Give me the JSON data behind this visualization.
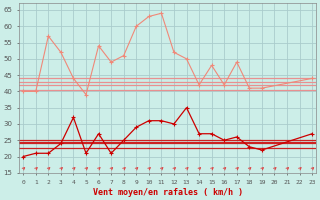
{
  "background_color": "#cceee8",
  "grid_color": "#aacccc",
  "xlabel": "Vent moyen/en rafales ( km/h )",
  "ylim": [
    15,
    67
  ],
  "yticks": [
    15,
    20,
    25,
    30,
    35,
    40,
    45,
    50,
    55,
    60,
    65
  ],
  "xlim": [
    -0.3,
    23.3
  ],
  "xticks": [
    0,
    1,
    2,
    3,
    4,
    5,
    6,
    7,
    8,
    9,
    10,
    11,
    12,
    13,
    14,
    15,
    16,
    17,
    18,
    19,
    20,
    21,
    22,
    23
  ],
  "line_gust": [
    40,
    40,
    57,
    52,
    44,
    39,
    54,
    49,
    51,
    60,
    63,
    64,
    52,
    50,
    42,
    48,
    42,
    49,
    41,
    41,
    44
  ],
  "line_gust_x": [
    0,
    1,
    2,
    3,
    4,
    5,
    6,
    7,
    8,
    9,
    10,
    11,
    12,
    13,
    14,
    15,
    16,
    17,
    18,
    19,
    23
  ],
  "line_avg": [
    20,
    21,
    21,
    24,
    32,
    21,
    27,
    21,
    25,
    29,
    31,
    31,
    30,
    35,
    27,
    27,
    25,
    26,
    23,
    22,
    27
  ],
  "line_avg_x": [
    0,
    1,
    2,
    3,
    4,
    5,
    6,
    7,
    8,
    9,
    10,
    11,
    12,
    13,
    14,
    15,
    16,
    17,
    18,
    19,
    23
  ],
  "hline_light": [
    44.0,
    43.0,
    42.0,
    40.5
  ],
  "hline_dark": [
    25.0,
    24.5,
    24.0,
    22.5
  ],
  "color_light": "#f08878",
  "color_dark": "#cc0000",
  "color_hline_light": "#e89090",
  "color_hline_dark": "#cc2222",
  "arrow_color": "#dd4444"
}
